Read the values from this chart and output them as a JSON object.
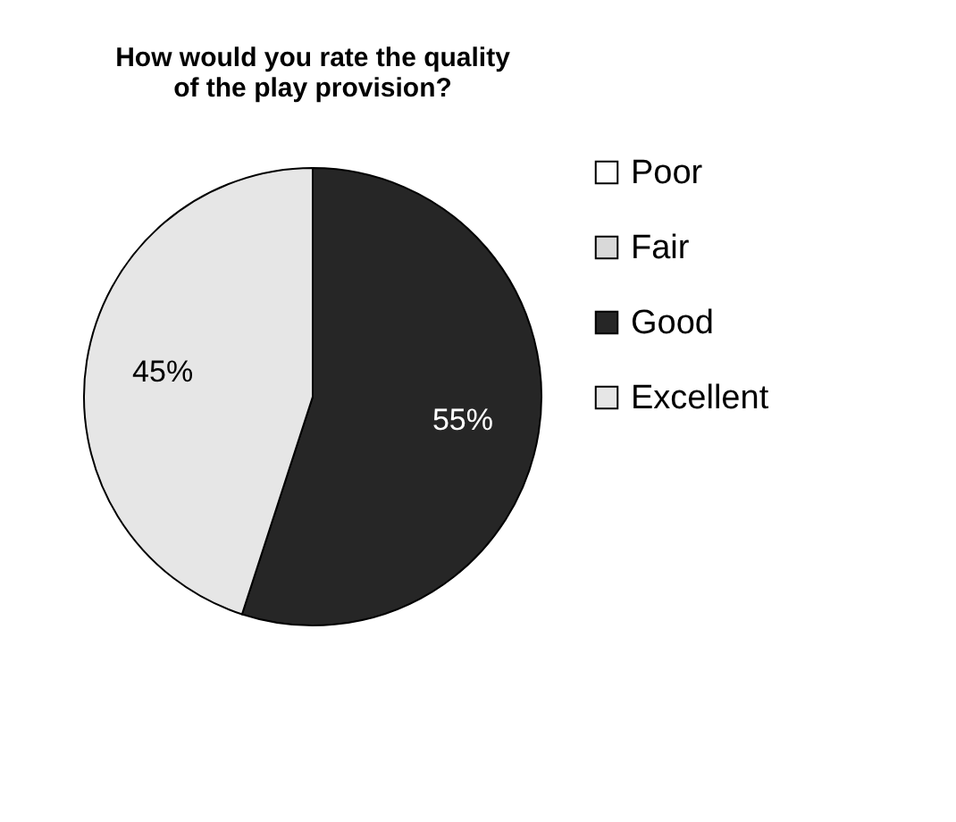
{
  "chart_data": {
    "type": "pie",
    "title": "How would you rate the quality of the play provision?",
    "categories": [
      "Poor",
      "Fair",
      "Good",
      "Excellent"
    ],
    "values": [
      0,
      0,
      55,
      45
    ],
    "colors": [
      "#ffffff",
      "#d9d9d9",
      "#262626",
      "#e6e6e6"
    ],
    "value_labels": [
      null,
      null,
      "55%",
      "45%"
    ],
    "legend": "right"
  }
}
